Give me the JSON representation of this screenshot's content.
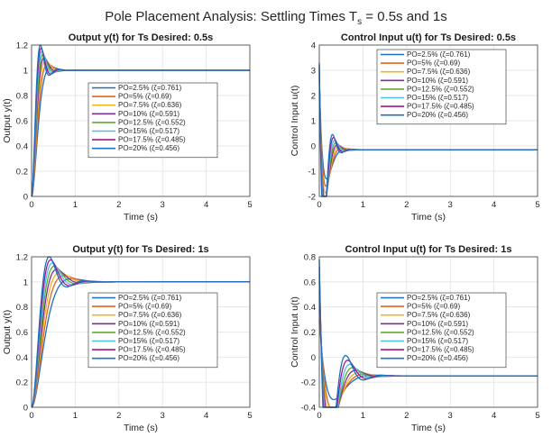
{
  "suptitle_main": "Pole Placement Analysis:  Settling Times T",
  "suptitle_sub": "s",
  "suptitle_tail": " = 0.5s  and  1s",
  "colors": [
    "#0072BD",
    "#D95319",
    "#EDB120",
    "#7E2F8E",
    "#77AC30",
    "#4DBEEE",
    "#A2142F",
    "#1f77b4"
  ],
  "series_colors": [
    "#1f6fbf",
    "#e0661c",
    "#f0b323",
    "#7c2f96",
    "#66a834",
    "#4cbfe8",
    "#a1198f",
    "#1b73c2"
  ],
  "chart_data": [
    {
      "type": "line",
      "title": "Output y(t) for Ts Desired: 0.5s",
      "xlabel": "Time (s)",
      "ylabel": "Output y(t)",
      "xlim": [
        0,
        5
      ],
      "ylim": [
        0,
        1.2
      ],
      "xticks": [
        0,
        1,
        2,
        3,
        4,
        5
      ],
      "yticks": [
        0,
        0.2,
        0.4,
        0.6,
        0.8,
        1,
        1.2
      ],
      "grid": true,
      "legend_position": "center",
      "signal": "output",
      "Ts": 0.5,
      "series": [
        {
          "name": "PO=2.5%  (ζ=0.761)",
          "zeta": 0.761
        },
        {
          "name": "PO=5%  (ζ=0.69)",
          "zeta": 0.69
        },
        {
          "name": "PO=7.5%  (ζ=0.636)",
          "zeta": 0.636
        },
        {
          "name": "PO=10%  (ζ=0.591)",
          "zeta": 0.591
        },
        {
          "name": "PO=12.5%  (ζ=0.552)",
          "zeta": 0.552
        },
        {
          "name": "PO=15%  (ζ=0.517)",
          "zeta": 0.517
        },
        {
          "name": "PO=17.5%  (ζ=0.485)",
          "zeta": 0.485
        },
        {
          "name": "PO=20%  (ζ=0.456)",
          "zeta": 0.456
        }
      ]
    },
    {
      "type": "line",
      "title": "Control Input u(t) for Ts Desired: 0.5s",
      "xlabel": "Time (s)",
      "ylabel": "Control Input u(t)",
      "xlim": [
        0,
        5
      ],
      "ylim": [
        -2,
        4
      ],
      "xticks": [
        0,
        1,
        2,
        3,
        4,
        5
      ],
      "yticks": [
        -2,
        -1,
        0,
        1,
        2,
        3,
        4
      ],
      "grid": true,
      "legend_position": "top-center",
      "signal": "control",
      "Ts": 0.5,
      "u0": [
        2.6,
        2.7,
        2.8,
        2.9,
        3.0,
        3.1,
        3.2,
        3.3
      ],
      "u_final": -0.15,
      "series": [
        {
          "name": "PO=2.5%  (ζ=0.761)",
          "zeta": 0.761
        },
        {
          "name": "PO=5%  (ζ=0.69)",
          "zeta": 0.69
        },
        {
          "name": "PO=7.5%  (ζ=0.636)",
          "zeta": 0.636
        },
        {
          "name": "PO=10%  (ζ=0.591)",
          "zeta": 0.591
        },
        {
          "name": "PO=12.5%  (ζ=0.552)",
          "zeta": 0.552
        },
        {
          "name": "PO=15%  (ζ=0.517)",
          "zeta": 0.517
        },
        {
          "name": "PO=17.5%  (ζ=0.485)",
          "zeta": 0.485
        },
        {
          "name": "PO=20%  (ζ=0.456)",
          "zeta": 0.456
        }
      ]
    },
    {
      "type": "line",
      "title": "Output y(t) for Ts Desired: 1s",
      "xlabel": "Time (s)",
      "ylabel": "Output y(t)",
      "xlim": [
        0,
        5
      ],
      "ylim": [
        0,
        1.2
      ],
      "xticks": [
        0,
        1,
        2,
        3,
        4,
        5
      ],
      "yticks": [
        0,
        0.2,
        0.4,
        0.6,
        0.8,
        1,
        1.2
      ],
      "grid": true,
      "legend_position": "center",
      "signal": "output",
      "Ts": 1,
      "series": [
        {
          "name": "PO=2.5%  (ζ=0.761)",
          "zeta": 0.761
        },
        {
          "name": "PO=5%  (ζ=0.69)",
          "zeta": 0.69
        },
        {
          "name": "PO=7.5%  (ζ=0.636)",
          "zeta": 0.636
        },
        {
          "name": "PO=10%  (ζ=0.591)",
          "zeta": 0.591
        },
        {
          "name": "PO=12.5%  (ζ=0.552)",
          "zeta": 0.552
        },
        {
          "name": "PO=15%  (ζ=0.517)",
          "zeta": 0.517
        },
        {
          "name": "PO=17.5%  (ζ=0.485)",
          "zeta": 0.485
        },
        {
          "name": "PO=20%  (ζ=0.456)",
          "zeta": 0.456
        }
      ]
    },
    {
      "type": "line",
      "title": "Control Input u(t) for Ts Desired: 1s",
      "xlabel": "Time (s)",
      "ylabel": "Control Input u(t)",
      "xlim": [
        0,
        5
      ],
      "ylim": [
        -0.4,
        0.8
      ],
      "xticks": [
        0,
        1,
        2,
        3,
        4,
        5
      ],
      "yticks": [
        -0.4,
        -0.2,
        0,
        0.2,
        0.4,
        0.6,
        0.8
      ],
      "grid": true,
      "legend_position": "center-right",
      "signal": "control",
      "Ts": 1,
      "u0": [
        0.3,
        0.38,
        0.46,
        0.53,
        0.6,
        0.66,
        0.72,
        0.78
      ],
      "u_final": -0.15,
      "series": [
        {
          "name": "PO=2.5%  (ζ=0.761)",
          "zeta": 0.761
        },
        {
          "name": "PO=5%  (ζ=0.69)",
          "zeta": 0.69
        },
        {
          "name": "PO=7.5%  (ζ=0.636)",
          "zeta": 0.636
        },
        {
          "name": "PO=10%  (ζ=0.591)",
          "zeta": 0.591
        },
        {
          "name": "PO=12.5%  (ζ=0.552)",
          "zeta": 0.552
        },
        {
          "name": "PO=15%  (ζ=0.517)",
          "zeta": 0.517
        },
        {
          "name": "PO=17.5%  (ζ=0.485)",
          "zeta": 0.485
        },
        {
          "name": "PO=20%  (ζ=0.456)",
          "zeta": 0.456
        }
      ]
    }
  ]
}
